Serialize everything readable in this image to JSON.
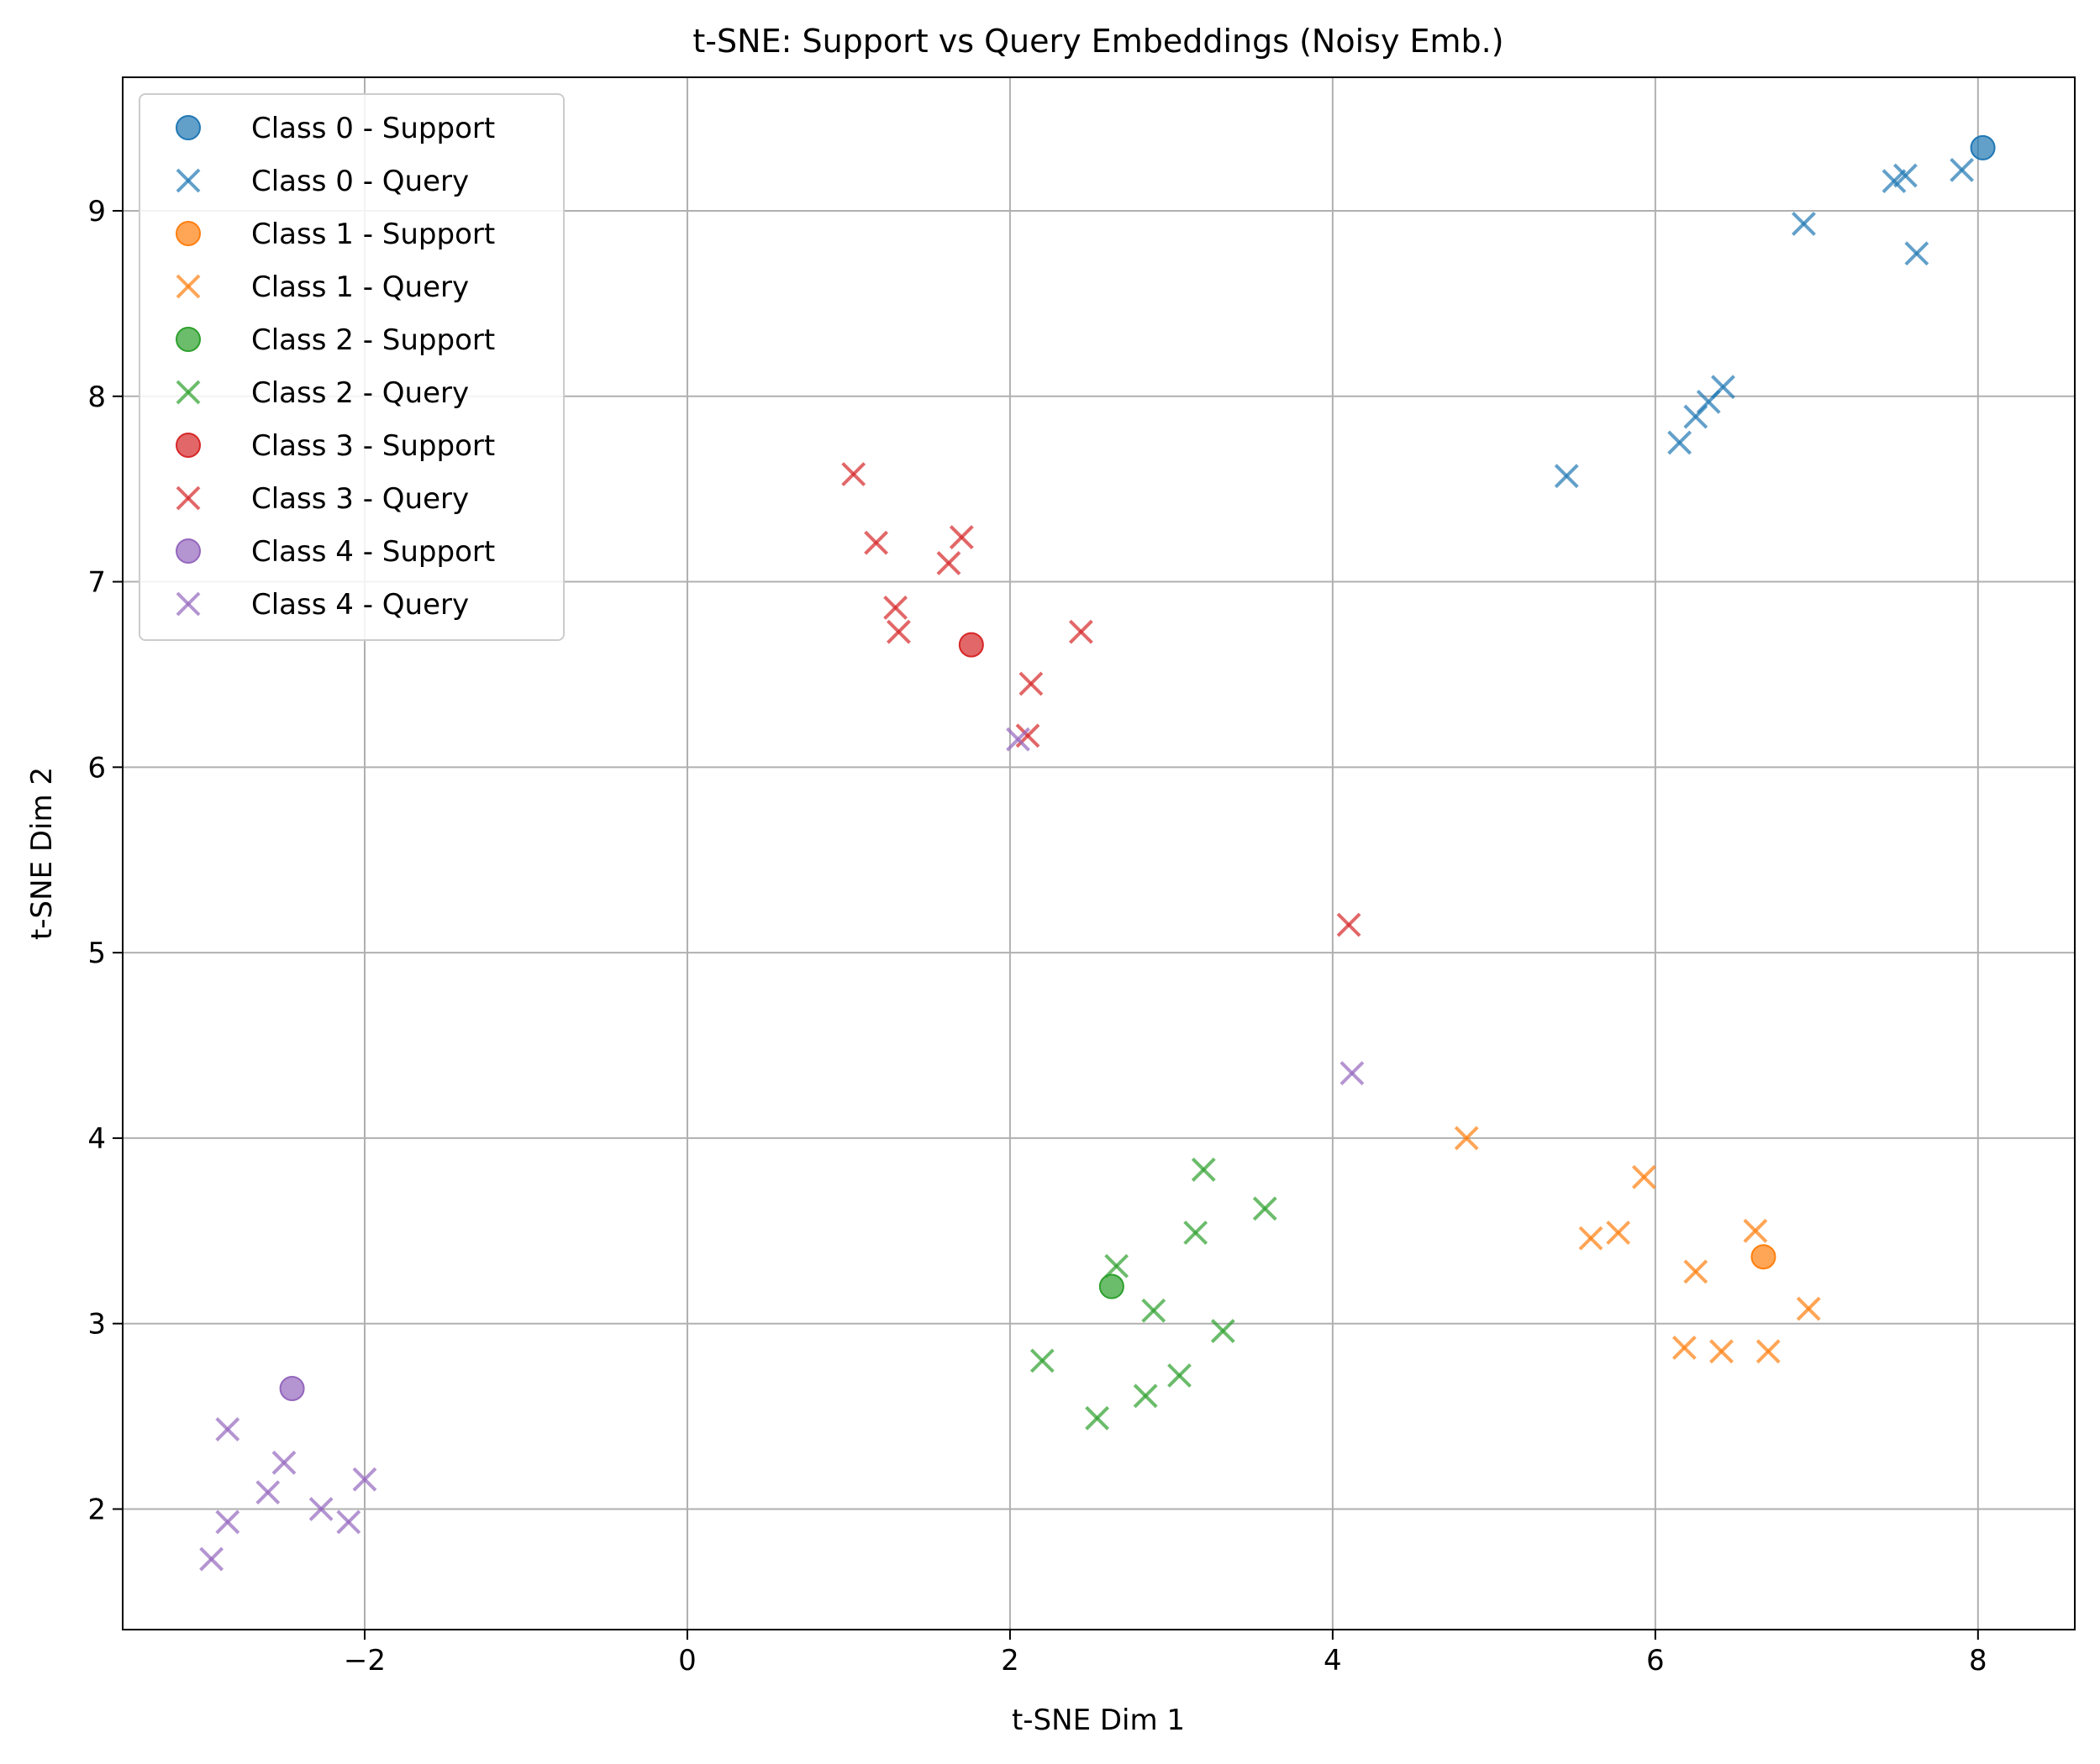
{
  "chart_data": {
    "type": "scatter",
    "title": "t-SNE: Support vs Query Embeddings (Noisy Emb.)",
    "xlabel": "t-SNE Dim 1",
    "ylabel": "t-SNE Dim 2",
    "xlim": [
      -3.5,
      8.6
    ],
    "ylim": [
      1.35,
      9.72
    ],
    "xticks": [
      -2,
      0,
      2,
      4,
      6,
      8
    ],
    "yticks": [
      2,
      3,
      4,
      5,
      6,
      7,
      8,
      9
    ],
    "xtick_labels": [
      "−2",
      "0",
      "2",
      "4",
      "6",
      "8"
    ],
    "ytick_labels": [
      "2",
      "3",
      "4",
      "5",
      "6",
      "7",
      "8",
      "9"
    ],
    "grid": true,
    "legend_position": "top-left",
    "series": [
      {
        "name": "Class 0 - Support",
        "marker": "circle",
        "color": "#1f77b4",
        "points": [
          [
            8.03,
            9.34
          ]
        ]
      },
      {
        "name": "Class 0 - Query",
        "marker": "x",
        "color": "#1f77b4",
        "points": [
          [
            7.48,
            9.16
          ],
          [
            7.55,
            9.19
          ],
          [
            7.9,
            9.22
          ],
          [
            6.92,
            8.93
          ],
          [
            7.62,
            8.77
          ],
          [
            6.42,
            8.05
          ],
          [
            6.33,
            7.97
          ],
          [
            6.25,
            7.89
          ],
          [
            6.15,
            7.75
          ],
          [
            5.45,
            7.57
          ]
        ]
      },
      {
        "name": "Class 1 - Support",
        "marker": "circle",
        "color": "#ff7f0e",
        "points": [
          [
            6.67,
            3.36
          ]
        ]
      },
      {
        "name": "Class 1 - Query",
        "marker": "x",
        "color": "#ff7f0e",
        "points": [
          [
            4.83,
            4.0
          ],
          [
            5.93,
            3.79
          ],
          [
            5.6,
            3.46
          ],
          [
            5.77,
            3.49
          ],
          [
            6.62,
            3.5
          ],
          [
            6.25,
            3.28
          ],
          [
            6.95,
            3.08
          ],
          [
            6.18,
            2.87
          ],
          [
            6.41,
            2.85
          ],
          [
            6.7,
            2.85
          ]
        ]
      },
      {
        "name": "Class 2 - Support",
        "marker": "circle",
        "color": "#2ca02c",
        "points": [
          [
            2.63,
            3.2
          ]
        ]
      },
      {
        "name": "Class 2 - Query",
        "marker": "x",
        "color": "#2ca02c",
        "points": [
          [
            3.2,
            3.83
          ],
          [
            3.58,
            3.62
          ],
          [
            3.15,
            3.49
          ],
          [
            2.66,
            3.31
          ],
          [
            2.89,
            3.07
          ],
          [
            3.32,
            2.96
          ],
          [
            2.2,
            2.8
          ],
          [
            3.05,
            2.72
          ],
          [
            2.84,
            2.61
          ],
          [
            2.54,
            2.49
          ]
        ]
      },
      {
        "name": "Class 3 - Support",
        "marker": "circle",
        "color": "#d62728",
        "points": [
          [
            1.76,
            6.66
          ]
        ]
      },
      {
        "name": "Class 3 - Query",
        "marker": "x",
        "color": "#d62728",
        "points": [
          [
            1.03,
            7.58
          ],
          [
            1.17,
            7.21
          ],
          [
            1.7,
            7.24
          ],
          [
            1.62,
            7.1
          ],
          [
            1.29,
            6.86
          ],
          [
            1.31,
            6.73
          ],
          [
            2.44,
            6.73
          ],
          [
            2.13,
            6.45
          ],
          [
            2.11,
            6.17
          ],
          [
            4.1,
            5.15
          ]
        ]
      },
      {
        "name": "Class 4 - Support",
        "marker": "circle",
        "color": "#9467bd",
        "points": [
          [
            -2.45,
            2.65
          ]
        ]
      },
      {
        "name": "Class 4 - Query",
        "marker": "x",
        "color": "#9467bd",
        "points": [
          [
            2.05,
            6.15
          ],
          [
            4.12,
            4.35
          ],
          [
            -2.85,
            2.43
          ],
          [
            -2.5,
            2.25
          ],
          [
            -2.6,
            2.09
          ],
          [
            -2.85,
            1.93
          ],
          [
            -2.27,
            2.0
          ],
          [
            -2.1,
            1.93
          ],
          [
            -2.0,
            2.16
          ],
          [
            -2.95,
            1.73
          ]
        ]
      }
    ]
  }
}
